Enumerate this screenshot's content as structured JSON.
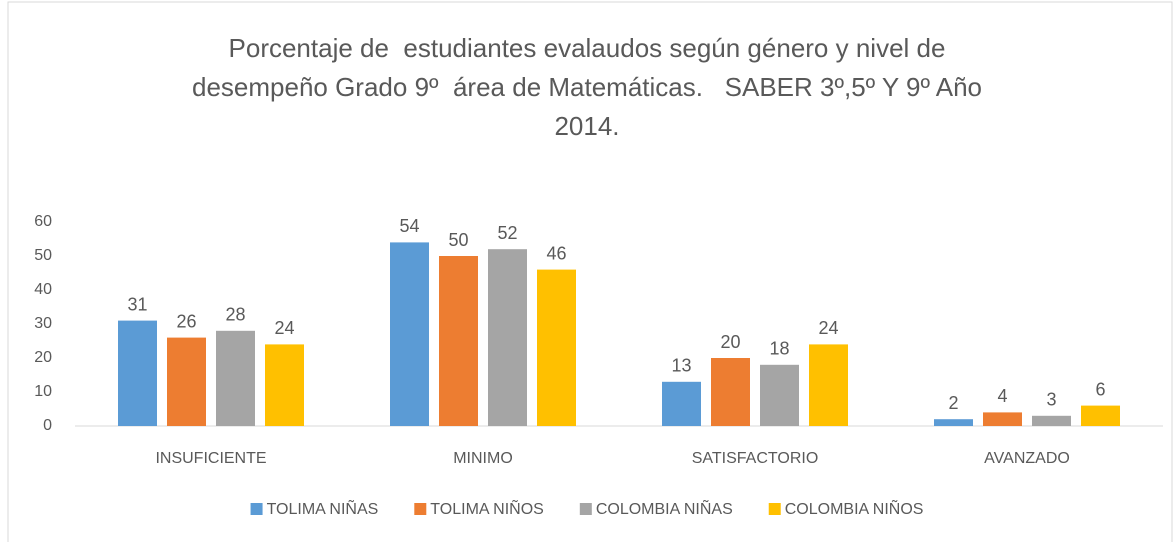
{
  "chart_data": {
    "type": "bar",
    "title": [
      "Porcentaje de  estudiantes evalaudos según género y nivel de",
      "desempeño Grado 9º  área de Matemáticas.   SABER 3º,5º Y 9º Año",
      "2014."
    ],
    "categories": [
      "INSUFICIENTE",
      "MINIMO",
      "SATISFACTORIO",
      "AVANZADO"
    ],
    "series": [
      {
        "name": "TOLIMA NIÑAS",
        "color": "#5b9bd5",
        "values": [
          31,
          54,
          13,
          2
        ]
      },
      {
        "name": "TOLIMA NIÑOS",
        "color": "#ed7d31",
        "values": [
          26,
          50,
          20,
          4
        ]
      },
      {
        "name": "COLOMBIA NIÑAS",
        "color": "#a5a5a5",
        "values": [
          28,
          52,
          18,
          3
        ]
      },
      {
        "name": "COLOMBIA NIÑOS",
        "color": "#ffc000",
        "values": [
          24,
          46,
          24,
          6
        ]
      }
    ],
    "ylim": [
      0,
      60
    ],
    "yticks": [
      0,
      10,
      20,
      30,
      40,
      50,
      60
    ],
    "grid": false,
    "legend": "bottom"
  }
}
